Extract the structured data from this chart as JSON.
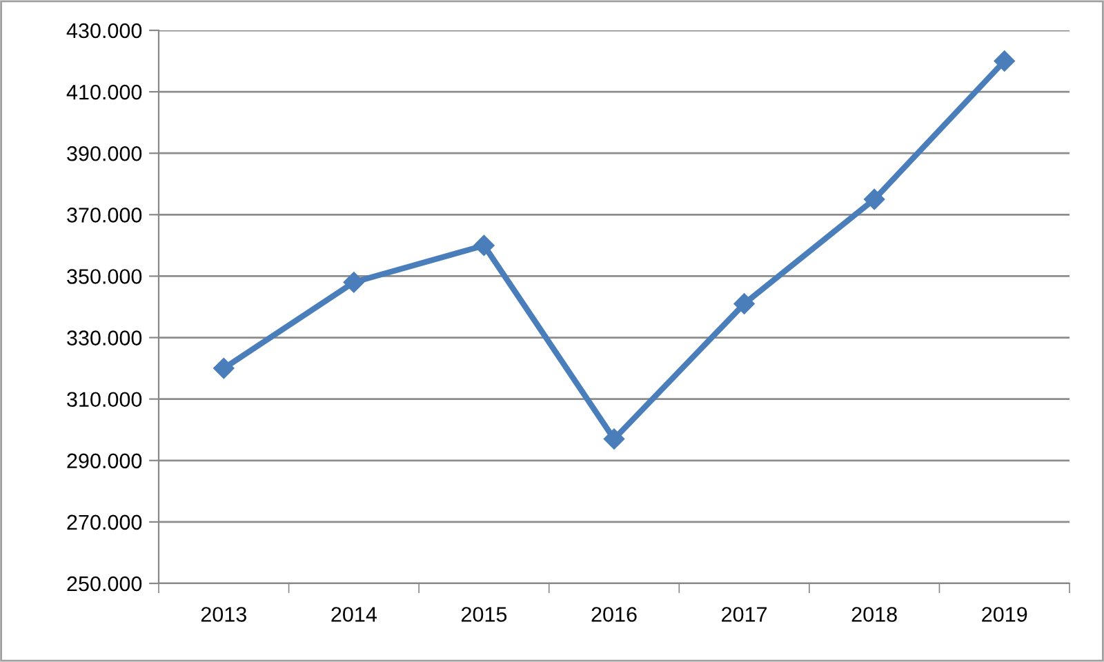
{
  "chart_data": {
    "type": "line",
    "categories": [
      "2013",
      "2014",
      "2015",
      "2016",
      "2017",
      "2018",
      "2019"
    ],
    "series": [
      {
        "color": "#4a7ebb",
        "values": [
          320000,
          348000,
          360000,
          297000,
          341000,
          375000,
          420000
        ]
      }
    ],
    "ylim": [
      250000,
      430000
    ],
    "yticks": [
      {
        "value": 250000,
        "label": "250.000"
      },
      {
        "value": 270000,
        "label": "270.000"
      },
      {
        "value": 290000,
        "label": "290.000"
      },
      {
        "value": 310000,
        "label": "310.000"
      },
      {
        "value": 330000,
        "label": "330.000"
      },
      {
        "value": 350000,
        "label": "350.000"
      },
      {
        "value": 370000,
        "label": "370.000"
      },
      {
        "value": 390000,
        "label": "390.000"
      },
      {
        "value": 410000,
        "label": "410.000"
      },
      {
        "value": 430000,
        "label": "430.000"
      }
    ],
    "grid": "y",
    "marker": "diamond",
    "line_style": "solid",
    "legend": false
  }
}
